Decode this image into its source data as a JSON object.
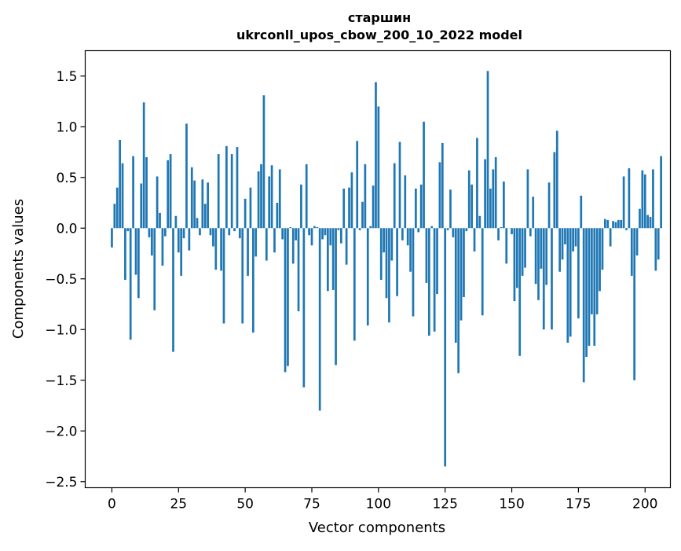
{
  "chart_data": {
    "type": "bar",
    "title_line1": "старшин",
    "title_line2": "ukrconll_upos_cbow_200_10_2022 model",
    "xlabel": "Vector components",
    "ylabel": "Components values",
    "xlim": [
      -10,
      209.5
    ],
    "ylim": [
      -2.56,
      1.75
    ],
    "grid": false,
    "bar_color": "#1f77b4",
    "x_ticks": [
      0,
      25,
      50,
      75,
      100,
      125,
      150,
      175,
      200
    ],
    "y_ticks": [
      -2.5,
      -2.0,
      -1.5,
      -1.0,
      -0.5,
      0.0,
      0.5,
      1.0,
      1.5
    ],
    "y_tick_labels": [
      "−2.5",
      "−2.0",
      "−1.5",
      "−1.0",
      "−0.5",
      "0.0",
      "0.5",
      "1.0",
      "1.5"
    ],
    "values": [
      -0.19,
      0.24,
      0.4,
      0.87,
      0.64,
      -0.51,
      -0.03,
      -1.1,
      0.71,
      -0.46,
      -0.69,
      0.44,
      1.24,
      0.7,
      -0.09,
      -0.27,
      -0.81,
      0.51,
      0.15,
      -0.37,
      -0.08,
      0.67,
      0.73,
      -1.22,
      0.12,
      -0.24,
      -0.47,
      -0.1,
      1.03,
      -0.22,
      0.6,
      0.47,
      0.1,
      -0.07,
      0.48,
      0.24,
      0.45,
      -0.07,
      -0.18,
      -0.41,
      0.73,
      -0.42,
      -0.94,
      0.81,
      -0.07,
      0.73,
      -0.03,
      0.8,
      -0.1,
      -0.94,
      0.29,
      -0.47,
      0.4,
      -1.03,
      -0.28,
      0.56,
      0.63,
      1.31,
      -0.32,
      0.51,
      0.62,
      -0.24,
      0.25,
      0.58,
      -0.11,
      -1.42,
      -1.36,
      0.01,
      -0.35,
      -0.12,
      -0.82,
      0.43,
      -1.57,
      0.63,
      -0.07,
      -0.17,
      0.02,
      0.01,
      -1.8,
      -0.11,
      -0.07,
      -0.62,
      -0.17,
      -0.61,
      -1.35,
      -0.02,
      -0.15,
      0.39,
      -0.36,
      0.4,
      0.55,
      -1.11,
      0.86,
      -0.02,
      0.26,
      0.63,
      -0.96,
      0.02,
      0.42,
      1.44,
      1.2,
      -0.51,
      -0.24,
      -0.69,
      -0.93,
      -0.32,
      0.64,
      -0.67,
      0.85,
      -0.12,
      0.52,
      -0.17,
      -0.43,
      -0.87,
      0.39,
      -0.04,
      0.43,
      1.05,
      -0.54,
      -1.06,
      0.02,
      -1.02,
      -0.65,
      0.65,
      0.84,
      -2.35,
      -0.02,
      0.38,
      -0.09,
      -1.13,
      -1.43,
      -0.91,
      -0.68,
      -0.03,
      0.57,
      0.43,
      -0.23,
      0.89,
      0.12,
      -0.86,
      0.68,
      1.55,
      0.39,
      0.58,
      0.7,
      -0.12,
      0.01,
      0.46,
      -0.35,
      0.0,
      -0.06,
      -0.72,
      -0.59,
      -1.26,
      -0.47,
      -0.39,
      0.58,
      -0.08,
      0.31,
      -0.55,
      -0.71,
      -0.4,
      -1.0,
      -0.56,
      0.45,
      -1.0,
      0.75,
      0.96,
      -0.43,
      -0.31,
      -0.16,
      -1.13,
      -1.07,
      -0.23,
      -0.18,
      -0.89,
      0.32,
      -1.52,
      -1.27,
      -1.16,
      -0.85,
      -1.16,
      -0.85,
      -0.62,
      -0.41,
      0.09,
      0.08,
      -0.18,
      0.07,
      0.06,
      0.08,
      0.08,
      0.51,
      -0.02,
      0.59,
      -0.47,
      -1.5,
      -0.27,
      0.19,
      0.57,
      0.53,
      0.13,
      0.11,
      0.58,
      -0.42,
      -0.31,
      0.71
    ]
  }
}
